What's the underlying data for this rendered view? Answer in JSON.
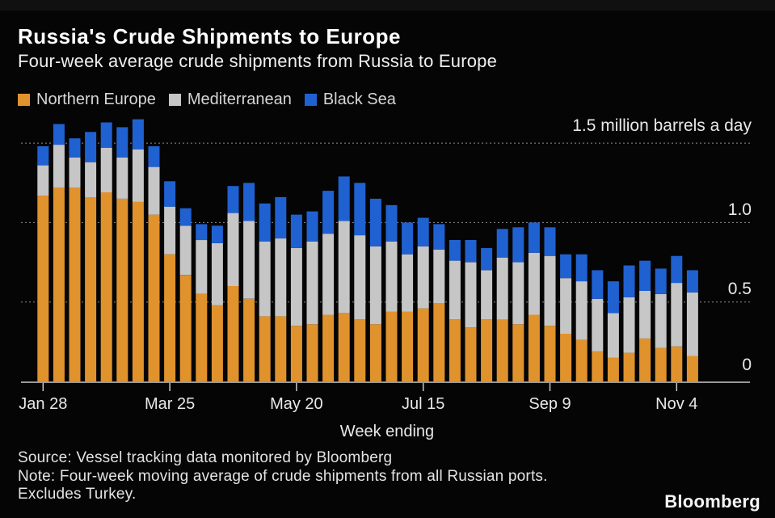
{
  "header": {
    "title": "Russia's Crude Shipments to Europe",
    "subtitle": "Four-week average crude shipments from Russia to Europe"
  },
  "legend": [
    {
      "label": "Northern Europe",
      "color": "#e0922d"
    },
    {
      "label": "Mediterranean",
      "color": "#c6c6c6"
    },
    {
      "label": "Black Sea",
      "color": "#2061d2"
    }
  ],
  "chart_data": {
    "type": "bar",
    "stacked": true,
    "unit": "million barrels a day",
    "xlabel": "Week ending",
    "ylim": [
      0,
      1.69
    ],
    "grid_on": true,
    "grid_values": [
      0.5,
      1.0,
      1.5
    ],
    "y_annotation": "1.5 million barrels a day",
    "y_ticks": [
      {
        "value": 0,
        "label": "0"
      },
      {
        "value": 0.5,
        "label": "0.5"
      },
      {
        "value": 1.0,
        "label": "1.0"
      }
    ],
    "x_ticks": [
      {
        "index": 0,
        "label": "Jan 28"
      },
      {
        "index": 8,
        "label": "Mar 25"
      },
      {
        "index": 16,
        "label": "May 20"
      },
      {
        "index": 24,
        "label": "Jul 15"
      },
      {
        "index": 32,
        "label": "Sep 9"
      },
      {
        "index": 40,
        "label": "Nov 4"
      }
    ],
    "x": [
      "Jan 28",
      "Feb 4",
      "Feb 11",
      "Feb 18",
      "Feb 25",
      "Mar 4",
      "Mar 11",
      "Mar 18",
      "Mar 25",
      "Apr 1",
      "Apr 8",
      "Apr 15",
      "Apr 22",
      "Apr 29",
      "May 6",
      "May 13",
      "May 20",
      "May 27",
      "Jun 3",
      "Jun 10",
      "Jun 17",
      "Jun 24",
      "Jul 1",
      "Jul 8",
      "Jul 15",
      "Jul 22",
      "Jul 29",
      "Aug 5",
      "Aug 12",
      "Aug 19",
      "Aug 26",
      "Sep 2",
      "Sep 9",
      "Sep 16",
      "Sep 23",
      "Sep 30",
      "Oct 7",
      "Oct 14",
      "Oct 21",
      "Oct 28",
      "Nov 4",
      "Nov 11"
    ],
    "series": [
      {
        "name": "Northern Europe",
        "color": "#e0922d",
        "values": [
          1.17,
          1.22,
          1.22,
          1.16,
          1.19,
          1.15,
          1.13,
          1.05,
          0.8,
          0.67,
          0.55,
          0.48,
          0.6,
          0.52,
          0.41,
          0.41,
          0.35,
          0.36,
          0.42,
          0.43,
          0.39,
          0.36,
          0.44,
          0.44,
          0.46,
          0.49,
          0.39,
          0.34,
          0.39,
          0.39,
          0.36,
          0.42,
          0.35,
          0.3,
          0.26,
          0.19,
          0.15,
          0.18,
          0.27,
          0.21,
          0.22,
          0.16
        ]
      },
      {
        "name": "Mediterranean",
        "color": "#c6c6c6",
        "values": [
          0.19,
          0.27,
          0.19,
          0.22,
          0.28,
          0.26,
          0.33,
          0.3,
          0.3,
          0.31,
          0.34,
          0.39,
          0.46,
          0.49,
          0.47,
          0.49,
          0.49,
          0.52,
          0.51,
          0.58,
          0.53,
          0.49,
          0.44,
          0.36,
          0.39,
          0.34,
          0.37,
          0.41,
          0.31,
          0.39,
          0.39,
          0.39,
          0.44,
          0.35,
          0.37,
          0.33,
          0.28,
          0.35,
          0.3,
          0.34,
          0.4,
          0.4
        ]
      },
      {
        "name": "Black Sea",
        "color": "#2061d2",
        "values": [
          0.12,
          0.13,
          0.12,
          0.19,
          0.16,
          0.19,
          0.19,
          0.13,
          0.16,
          0.11,
          0.1,
          0.11,
          0.17,
          0.24,
          0.24,
          0.26,
          0.21,
          0.19,
          0.27,
          0.28,
          0.33,
          0.3,
          0.23,
          0.2,
          0.18,
          0.16,
          0.13,
          0.14,
          0.14,
          0.18,
          0.22,
          0.19,
          0.18,
          0.15,
          0.17,
          0.18,
          0.2,
          0.2,
          0.19,
          0.16,
          0.17,
          0.14
        ]
      }
    ]
  },
  "footer": {
    "source": "Source: Vessel tracking data monitored by Bloomberg",
    "note": "Note: Four-week moving average of crude shipments from all Russian ports.",
    "note2": "Excludes Turkey.",
    "logo": "Bloomberg"
  }
}
